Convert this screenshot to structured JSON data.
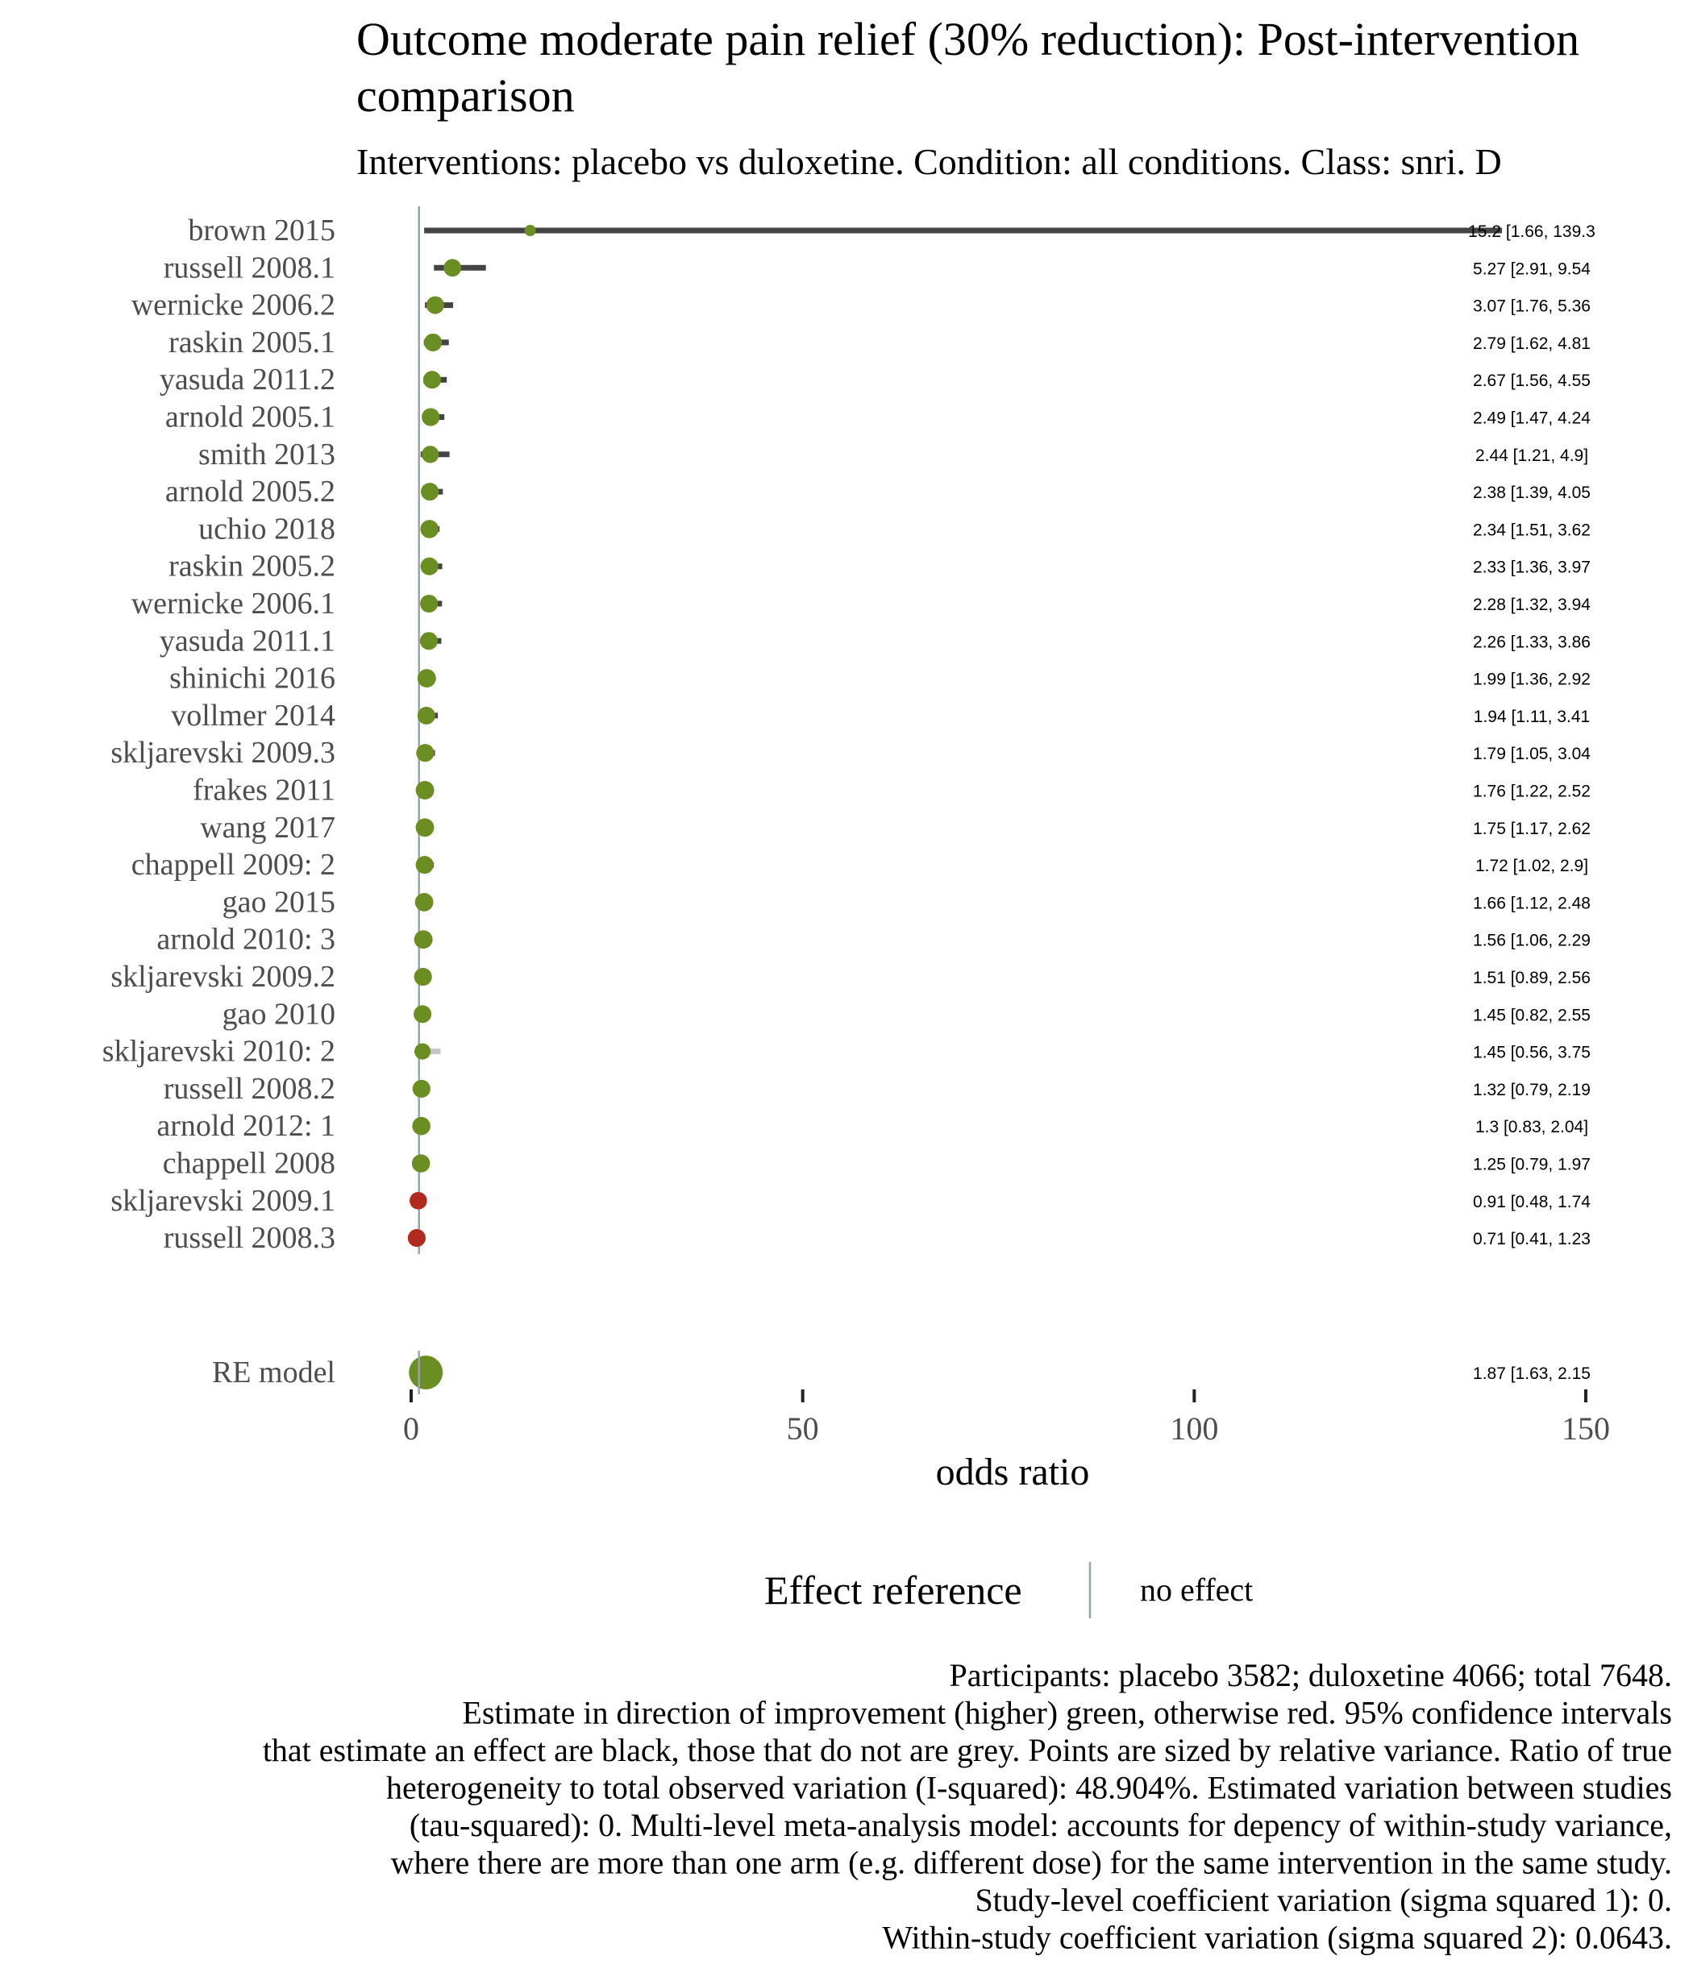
{
  "chart_data": {
    "type": "forest",
    "title": "Outcome moderate pain relief (30% reduction): Post-intervention comparison",
    "subtitle": "Interventions: placebo vs duloxetine. Condition: all conditions. Class: snri. D",
    "xlabel": "odds ratio",
    "xlim": [
      0,
      150
    ],
    "xticks": [
      0,
      50,
      100,
      150
    ],
    "reference_line": 1,
    "colors": {
      "improvement": "#6b8e23",
      "no_improvement": "#b22a1d",
      "ci_effect": "#444444",
      "ci_no_effect": "#c4c4c4",
      "reference": "#9aa3ab"
    },
    "studies": [
      {
        "label": "brown 2015",
        "est": 15.2,
        "lo": 1.66,
        "hi": 139.3,
        "text": "15.2 [1.66, 139.3"
      },
      {
        "label": "russell 2008.1",
        "est": 5.27,
        "lo": 2.91,
        "hi": 9.54,
        "text": "5.27 [2.91, 9.54"
      },
      {
        "label": "wernicke 2006.2",
        "est": 3.07,
        "lo": 1.76,
        "hi": 5.36,
        "text": "3.07 [1.76, 5.36"
      },
      {
        "label": "raskin 2005.1",
        "est": 2.79,
        "lo": 1.62,
        "hi": 4.81,
        "text": "2.79 [1.62, 4.81"
      },
      {
        "label": "yasuda 2011.2",
        "est": 2.67,
        "lo": 1.56,
        "hi": 4.55,
        "text": "2.67 [1.56, 4.55"
      },
      {
        "label": "arnold 2005.1",
        "est": 2.49,
        "lo": 1.47,
        "hi": 4.24,
        "text": "2.49 [1.47, 4.24"
      },
      {
        "label": "smith 2013",
        "est": 2.44,
        "lo": 1.21,
        "hi": 4.9,
        "text": "2.44 [1.21, 4.9]"
      },
      {
        "label": "arnold 2005.2",
        "est": 2.38,
        "lo": 1.39,
        "hi": 4.05,
        "text": "2.38 [1.39, 4.05"
      },
      {
        "label": "uchio 2018",
        "est": 2.34,
        "lo": 1.51,
        "hi": 3.62,
        "text": "2.34 [1.51, 3.62"
      },
      {
        "label": "raskin 2005.2",
        "est": 2.33,
        "lo": 1.36,
        "hi": 3.97,
        "text": "2.33 [1.36, 3.97"
      },
      {
        "label": "wernicke 2006.1",
        "est": 2.28,
        "lo": 1.32,
        "hi": 3.94,
        "text": "2.28 [1.32, 3.94"
      },
      {
        "label": "yasuda 2011.1",
        "est": 2.26,
        "lo": 1.33,
        "hi": 3.86,
        "text": "2.26 [1.33, 3.86"
      },
      {
        "label": "shinichi 2016",
        "est": 1.99,
        "lo": 1.36,
        "hi": 2.92,
        "text": "1.99 [1.36, 2.92"
      },
      {
        "label": "vollmer 2014",
        "est": 1.94,
        "lo": 1.11,
        "hi": 3.41,
        "text": "1.94 [1.11, 3.41"
      },
      {
        "label": "skljarevski 2009.3",
        "est": 1.79,
        "lo": 1.05,
        "hi": 3.04,
        "text": "1.79 [1.05, 3.04"
      },
      {
        "label": "frakes 2011",
        "est": 1.76,
        "lo": 1.22,
        "hi": 2.52,
        "text": "1.76 [1.22, 2.52"
      },
      {
        "label": "wang 2017",
        "est": 1.75,
        "lo": 1.17,
        "hi": 2.62,
        "text": "1.75 [1.17, 2.62"
      },
      {
        "label": "chappell 2009: 2",
        "est": 1.72,
        "lo": 1.02,
        "hi": 2.9,
        "text": "1.72 [1.02, 2.9]"
      },
      {
        "label": "gao 2015",
        "est": 1.66,
        "lo": 1.12,
        "hi": 2.48,
        "text": "1.66 [1.12, 2.48"
      },
      {
        "label": "arnold 2010: 3",
        "est": 1.56,
        "lo": 1.06,
        "hi": 2.29,
        "text": "1.56 [1.06, 2.29"
      },
      {
        "label": "skljarevski 2009.2",
        "est": 1.51,
        "lo": 0.89,
        "hi": 2.56,
        "text": "1.51 [0.89, 2.56"
      },
      {
        "label": "gao 2010",
        "est": 1.45,
        "lo": 0.82,
        "hi": 2.55,
        "text": "1.45 [0.82, 2.55"
      },
      {
        "label": "skljarevski 2010: 2",
        "est": 1.45,
        "lo": 0.56,
        "hi": 3.75,
        "text": "1.45 [0.56, 3.75"
      },
      {
        "label": "russell 2008.2",
        "est": 1.32,
        "lo": 0.79,
        "hi": 2.19,
        "text": "1.32 [0.79, 2.19"
      },
      {
        "label": "arnold 2012: 1",
        "est": 1.3,
        "lo": 0.83,
        "hi": 2.04,
        "text": "1.3 [0.83, 2.04]"
      },
      {
        "label": "chappell 2008",
        "est": 1.25,
        "lo": 0.79,
        "hi": 1.97,
        "text": "1.25 [0.79, 1.97"
      },
      {
        "label": "skljarevski 2009.1",
        "est": 0.91,
        "lo": 0.48,
        "hi": 1.74,
        "text": "0.91 [0.48, 1.74"
      },
      {
        "label": "russell 2008.3",
        "est": 0.71,
        "lo": 0.41,
        "hi": 1.23,
        "text": "0.71 [0.41, 1.23"
      }
    ],
    "pooled": {
      "label": "RE model",
      "est": 1.87,
      "lo": 1.63,
      "hi": 2.15,
      "text": "1.87 [1.63, 2.15"
    },
    "legend": {
      "title": "Effect reference",
      "entry": "no effect",
      "position": "bottom"
    }
  },
  "caption": [
    "Participants: placebo 3582; duloxetine 4066; total 7648.",
    "Estimate in direction of improvement (higher) green, otherwise red. 95% confidence intervals",
    "that estimate an effect are black, those that do not are grey. Points are sized by relative variance. Ratio of true",
    "heterogeneity to total observed variation (I-squared): 48.904%. Estimated variation between studies",
    "(tau-squared): 0. Multi-level meta-analysis model: accounts for depency of within-study variance,",
    "where there are more than one arm (e.g. different dose) for the same intervention in the same study.",
    "Study-level coefficient variation (sigma squared 1): 0.",
    "Within-study coefficient variation (sigma squared 2): 0.0643."
  ]
}
